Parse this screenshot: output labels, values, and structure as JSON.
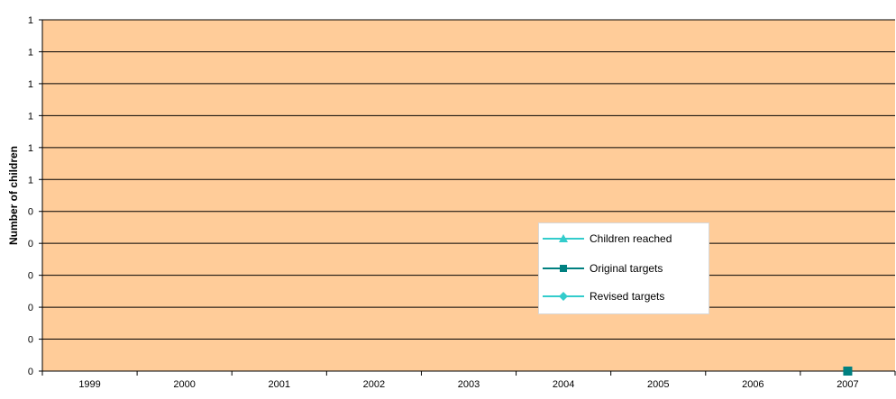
{
  "chart_data": {
    "type": "line",
    "title": "",
    "xlabel": "",
    "ylabel": "Number of children",
    "categories": [
      "1999",
      "2000",
      "2001",
      "2002",
      "2003",
      "2004",
      "2005",
      "2006",
      "2007"
    ],
    "y_tick_labels": [
      "0",
      "0",
      "0",
      "0",
      "0",
      "0",
      "1",
      "1",
      "1",
      "1",
      "1",
      "1"
    ],
    "ylim": [
      0,
      1.1
    ],
    "grid": true,
    "plot_background": "#FFCC99",
    "legend_position": "center-right",
    "series": [
      {
        "name": "Children reached",
        "color": "#33CCCC",
        "marker": "triangle",
        "values": [
          null,
          null,
          null,
          null,
          null,
          null,
          null,
          null,
          null
        ]
      },
      {
        "name": "Original targets",
        "color": "#008080",
        "marker": "square",
        "values": [
          null,
          null,
          null,
          null,
          null,
          null,
          null,
          null,
          0
        ]
      },
      {
        "name": "Revised targets",
        "color": "#33CCCC",
        "marker": "diamond",
        "values": [
          null,
          null,
          null,
          null,
          null,
          null,
          null,
          null,
          null
        ]
      }
    ]
  }
}
